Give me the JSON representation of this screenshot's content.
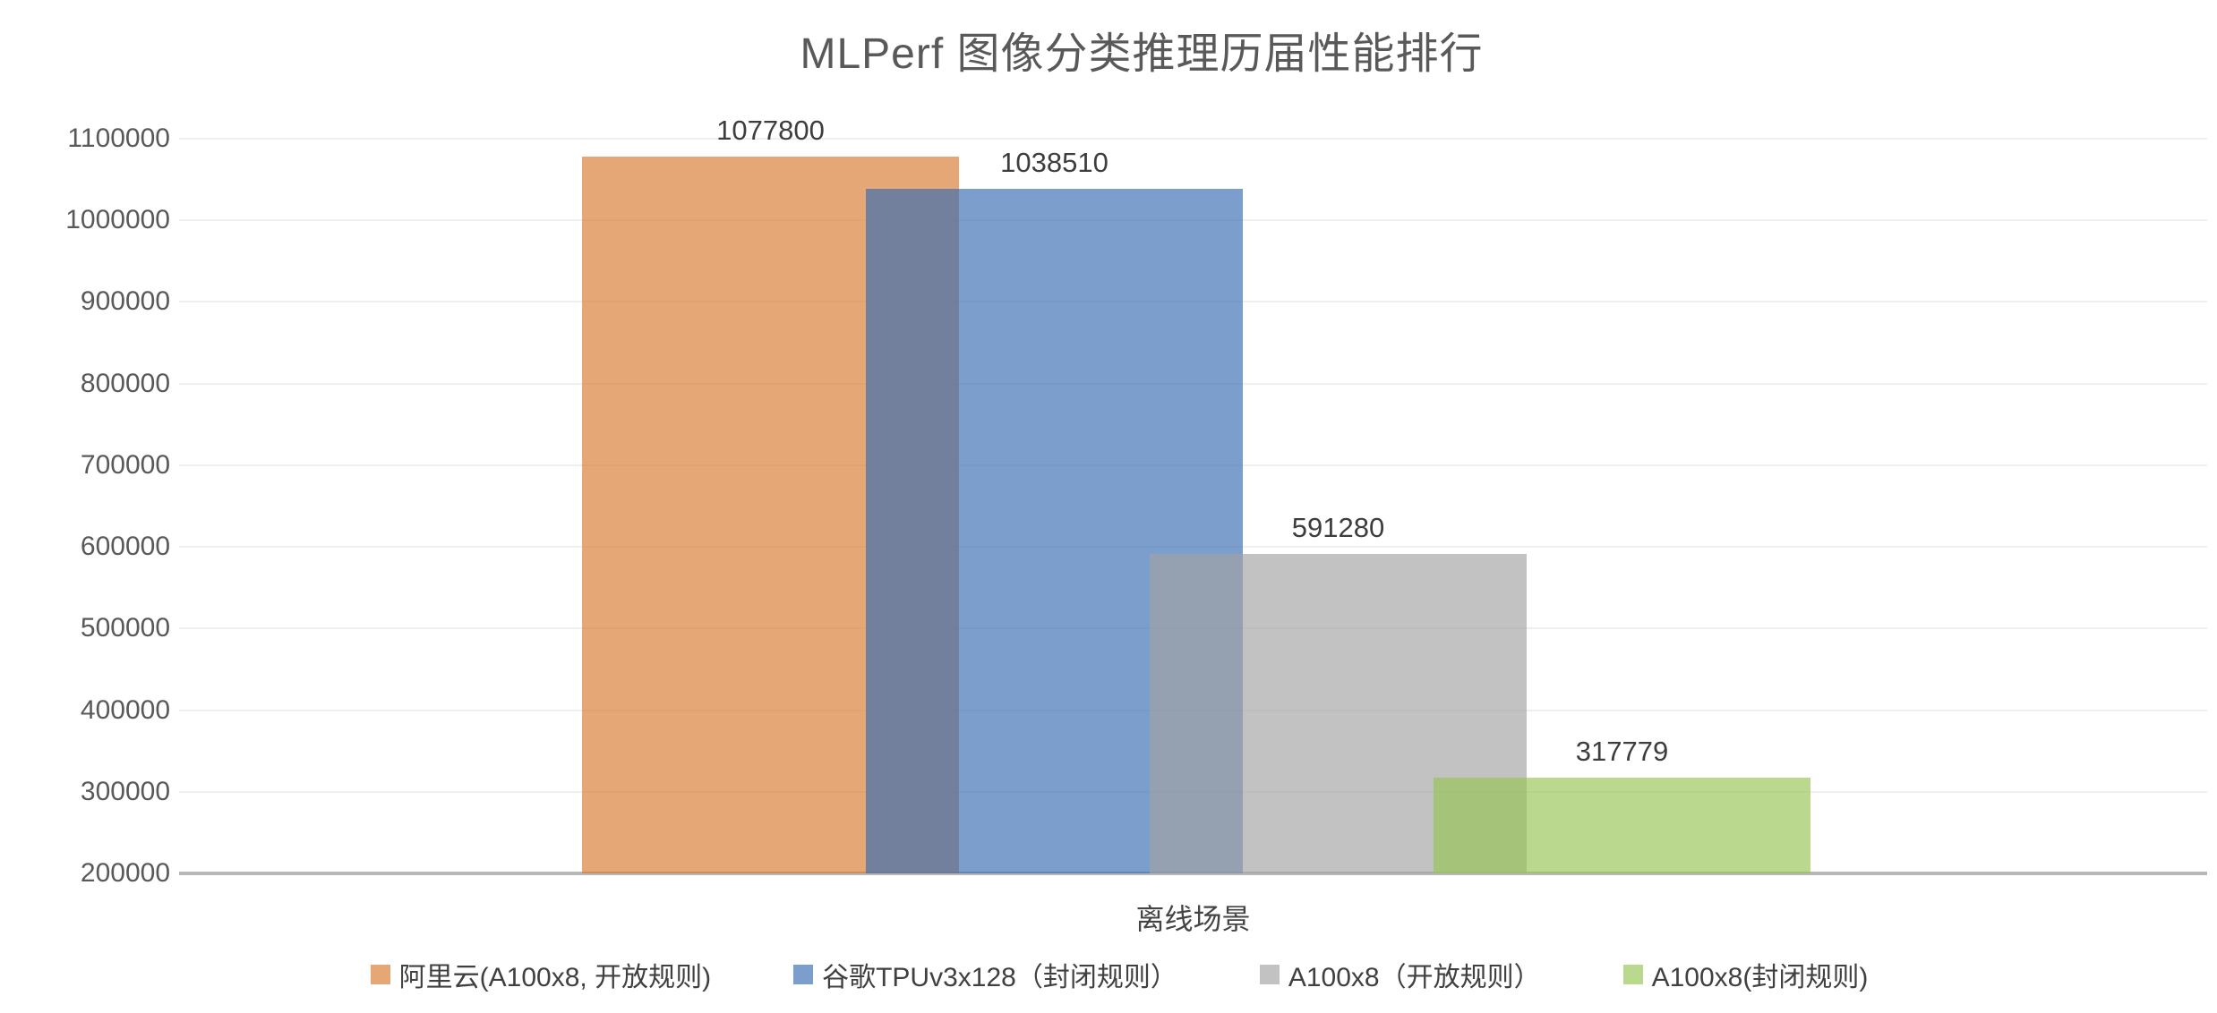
{
  "chart_data": {
    "type": "bar",
    "title": "MLPerf 图像分类推理历届性能排行",
    "xlabel": "离线场景",
    "categories": [
      "离线场景"
    ],
    "series": [
      {
        "name": "阿里云(A100x8, 开放规则)",
        "value": 1077800,
        "color": "#D87A2F"
      },
      {
        "name": "谷歌TPUv3x128（封闭规则）",
        "value": 1038510,
        "color": "#366CB3"
      },
      {
        "name": "A100x8（开放规则）",
        "value": 591280,
        "color": "#A2A2A2"
      },
      {
        "name": "A100x8(封闭规则)",
        "value": 317779,
        "color": "#96C454"
      }
    ],
    "value_labels": [
      "1077800",
      "1038510",
      "591280",
      "317779"
    ],
    "bar_opacity": 0.66,
    "ylim": [
      200000,
      1100000
    ],
    "ytick_interval": 100000,
    "yticks": [
      200000,
      300000,
      400000,
      500000,
      600000,
      700000,
      800000,
      900000,
      1000000,
      1100000
    ],
    "grid": true,
    "legend_position": "bottom"
  },
  "colors": {
    "title_text": "#595959",
    "tick_text": "#595959",
    "value_label_text": "#3d3d3d",
    "legend_text": "#404040",
    "gridline": "#efefef",
    "axis_line": "#b7b7b7",
    "background": "#ffffff"
  }
}
